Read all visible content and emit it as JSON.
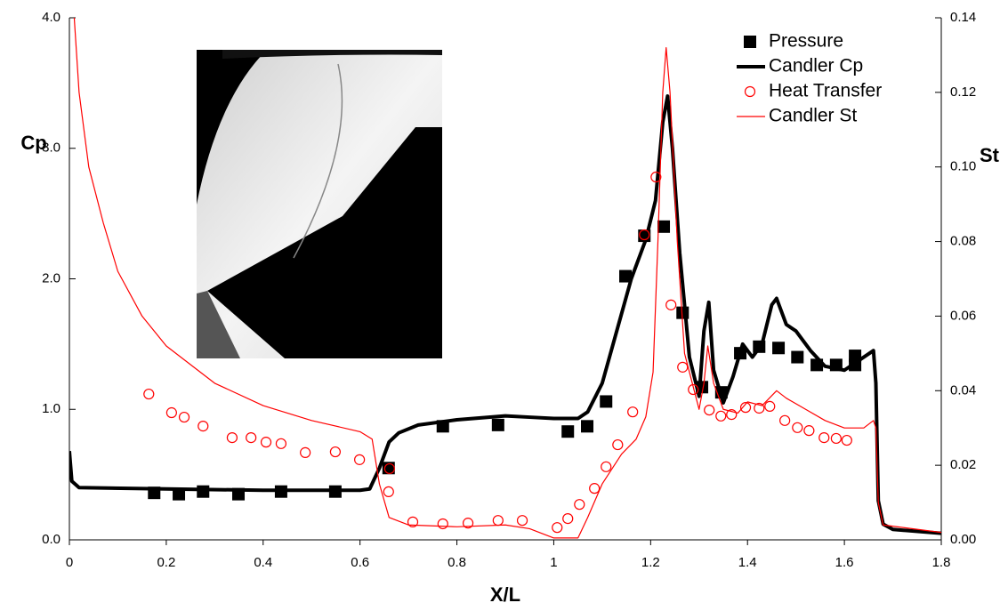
{
  "chart_data": {
    "type": "line",
    "xlabel": "X/L",
    "ylabel": "Cp",
    "y2label": "St",
    "xlim": [
      0,
      1.8
    ],
    "xticks": [
      0,
      0.2,
      0.4,
      0.6,
      0.8,
      1,
      1.2,
      1.4,
      1.6,
      1.8
    ],
    "ylim": [
      0,
      4.0
    ],
    "yticks": [
      {
        "value": 0,
        "label": "0.0"
      },
      {
        "value": 1,
        "label": "1.0"
      },
      {
        "value": 2,
        "label": "2.0"
      },
      {
        "value": 3,
        "label": "3.0"
      },
      {
        "value": 4,
        "label": "4.0"
      }
    ],
    "y2lim": [
      0,
      0.14
    ],
    "y2ticks": [
      {
        "value": 0,
        "label": "0.00"
      },
      {
        "value": 0.02,
        "label": "0.02"
      },
      {
        "value": 0.04,
        "label": "0.04"
      },
      {
        "value": 0.06,
        "label": "0.06"
      },
      {
        "value": 0.08,
        "label": "0.08"
      },
      {
        "value": 0.1,
        "label": "0.10"
      },
      {
        "value": 0.12,
        "label": "0.12"
      },
      {
        "value": 0.14,
        "label": "0.14"
      }
    ],
    "legend": "top-right",
    "series": [
      {
        "name": "Pressure",
        "color": "#000000",
        "marker": "square",
        "line_width": 0,
        "x": [
          0.175,
          0.226,
          0.276,
          0.349,
          0.437,
          0.549,
          0.659,
          0.771,
          0.885,
          1.029,
          1.069,
          1.108,
          1.148,
          1.187,
          1.227,
          1.266,
          1.306,
          1.346,
          1.385,
          1.424,
          1.464,
          1.503,
          1.543,
          1.583,
          1.622,
          1.622
        ],
        "values": [
          0.36,
          0.35,
          0.37,
          0.35,
          0.37,
          0.37,
          0.55,
          0.87,
          0.88,
          0.83,
          0.87,
          1.06,
          2.02,
          2.33,
          2.4,
          1.74,
          1.17,
          1.13,
          1.43,
          1.48,
          1.47,
          1.4,
          1.34,
          1.34,
          1.41,
          1.34
        ]
      },
      {
        "name": "Candler Cp",
        "color": "#000000",
        "marker": null,
        "line_width": 4,
        "x": [
          0,
          0.005,
          0.02,
          0.2,
          0.4,
          0.6,
          0.62,
          0.64,
          0.66,
          0.68,
          0.72,
          0.8,
          0.9,
          0.95,
          1.0,
          1.05,
          1.07,
          1.1,
          1.13,
          1.16,
          1.19,
          1.21,
          1.225,
          1.235,
          1.245,
          1.26,
          1.28,
          1.3,
          1.31,
          1.32,
          1.33,
          1.35,
          1.37,
          1.39,
          1.41,
          1.43,
          1.45,
          1.46,
          1.48,
          1.5,
          1.53,
          1.56,
          1.6,
          1.64,
          1.66,
          1.665,
          1.67,
          1.68,
          1.7,
          1.8
        ],
        "values": [
          0.68,
          0.45,
          0.4,
          0.39,
          0.38,
          0.38,
          0.39,
          0.55,
          0.75,
          0.82,
          0.88,
          0.92,
          0.95,
          0.94,
          0.93,
          0.93,
          0.98,
          1.2,
          1.6,
          2.0,
          2.3,
          2.6,
          3.2,
          3.4,
          3.0,
          2.2,
          1.4,
          1.1,
          1.6,
          1.82,
          1.3,
          1.05,
          1.25,
          1.5,
          1.4,
          1.5,
          1.8,
          1.85,
          1.65,
          1.6,
          1.45,
          1.33,
          1.3,
          1.4,
          1.45,
          1.2,
          0.3,
          0.12,
          0.08,
          0.05
        ]
      },
      {
        "name": "Heat Transfer",
        "color": "#ff0000",
        "marker": "circle",
        "line_width": 0,
        "axis": "y2",
        "x": [
          0.164,
          0.211,
          0.237,
          0.276,
          0.336,
          0.375,
          0.406,
          0.437,
          0.487,
          0.549,
          0.599,
          0.661,
          0.659,
          0.709,
          0.771,
          0.823,
          0.885,
          0.935,
          1.007,
          1.029,
          1.053,
          1.084,
          1.108,
          1.132,
          1.163,
          1.187,
          1.211,
          1.242,
          1.266,
          1.288,
          1.321,
          1.345,
          1.367,
          1.396,
          1.424,
          1.446,
          1.477,
          1.503,
          1.527,
          1.558,
          1.583,
          1.605
        ],
        "values": [
          0.0391,
          0.0341,
          0.0329,
          0.0305,
          0.0274,
          0.0274,
          0.0262,
          0.0258,
          0.0234,
          0.0236,
          0.0215,
          0.0191,
          0.0129,
          0.0048,
          0.0043,
          0.0045,
          0.0052,
          0.0052,
          0.0033,
          0.0057,
          0.0095,
          0.0138,
          0.0196,
          0.0255,
          0.0343,
          0.0818,
          0.0973,
          0.063,
          0.0463,
          0.0403,
          0.0348,
          0.0332,
          0.0336,
          0.0355,
          0.0353,
          0.0358,
          0.032,
          0.0301,
          0.0293,
          0.0274,
          0.0272,
          0.0267
        ]
      },
      {
        "name": "Candler St",
        "color": "#ff0000",
        "marker": null,
        "line_width": 1.2,
        "axis": "y2",
        "x": [
          0.01,
          0.02,
          0.04,
          0.07,
          0.1,
          0.15,
          0.2,
          0.3,
          0.4,
          0.5,
          0.6,
          0.625,
          0.64,
          0.66,
          0.7,
          0.8,
          0.9,
          0.95,
          1.0,
          1.05,
          1.07,
          1.1,
          1.14,
          1.17,
          1.19,
          1.205,
          1.215,
          1.225,
          1.232,
          1.24,
          1.255,
          1.27,
          1.29,
          1.3,
          1.31,
          1.318,
          1.33,
          1.35,
          1.38,
          1.4,
          1.43,
          1.46,
          1.48,
          1.52,
          1.56,
          1.6,
          1.64,
          1.66,
          1.665,
          1.67,
          1.68,
          1.8
        ],
        "values": [
          0.14,
          0.12,
          0.1,
          0.085,
          0.072,
          0.06,
          0.052,
          0.042,
          0.036,
          0.032,
          0.029,
          0.027,
          0.015,
          0.006,
          0.004,
          0.0035,
          0.004,
          0.003,
          0.0005,
          0.0005,
          0.006,
          0.015,
          0.023,
          0.027,
          0.033,
          0.045,
          0.08,
          0.12,
          0.132,
          0.12,
          0.08,
          0.05,
          0.04,
          0.035,
          0.042,
          0.052,
          0.042,
          0.035,
          0.034,
          0.037,
          0.036,
          0.04,
          0.038,
          0.035,
          0.032,
          0.03,
          0.03,
          0.032,
          0.03,
          0.01,
          0.004,
          0.002
        ]
      }
    ]
  }
}
